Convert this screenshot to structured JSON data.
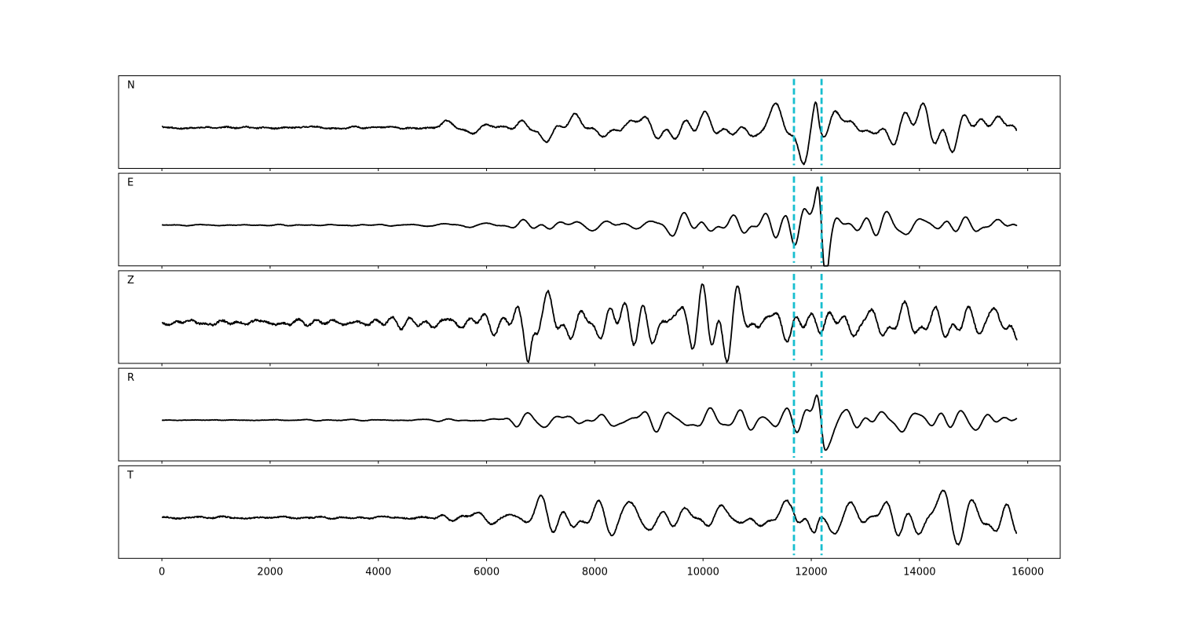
{
  "chart_data": {
    "type": "line",
    "panel_count": 5,
    "xlim": [
      -800,
      16600
    ],
    "x_ticks": [
      0,
      2000,
      4000,
      6000,
      8000,
      10000,
      12000,
      14000,
      16000
    ],
    "x_tick_labels": [
      "0",
      "2000",
      "4000",
      "6000",
      "8000",
      "10000",
      "12000",
      "14000",
      "16000"
    ],
    "x_range": [
      0,
      15800
    ],
    "y_ticks_shown": false,
    "grid": false,
    "trace_color": "#000000",
    "marker_color": "#17becf",
    "markers": [
      {
        "x": 11680,
        "style": "dashed"
      },
      {
        "x": 12190,
        "style": "dashed"
      }
    ],
    "series": [
      {
        "name": "N",
        "noise_amplitude": 0.03,
        "envelope": [
          [
            0,
            0.03
          ],
          [
            5000,
            0.04
          ],
          [
            5200,
            0.12
          ],
          [
            6300,
            0.1
          ],
          [
            6600,
            0.35
          ],
          [
            7000,
            0.55
          ],
          [
            8000,
            0.3
          ],
          [
            9000,
            0.35
          ],
          [
            11000,
            0.4
          ],
          [
            11600,
            0.45
          ],
          [
            11800,
            0.8
          ],
          [
            12000,
            0.95
          ],
          [
            12200,
            0.7
          ],
          [
            13000,
            0.5
          ],
          [
            15000,
            0.6
          ],
          [
            15300,
            0.8
          ],
          [
            15800,
            0.5
          ]
        ],
        "bursts": [
          [
            12100,
            0.85
          ]
        ],
        "seed": 11
      },
      {
        "name": "E",
        "noise_amplitude": 0.01,
        "envelope": [
          [
            0,
            0.01
          ],
          [
            4500,
            0.02
          ],
          [
            6300,
            0.08
          ],
          [
            6600,
            0.2
          ],
          [
            8000,
            0.2
          ],
          [
            10700,
            0.3
          ],
          [
            11500,
            0.3
          ],
          [
            11700,
            0.55
          ],
          [
            12000,
            0.95
          ],
          [
            12300,
            0.8
          ],
          [
            12600,
            0.3
          ],
          [
            13500,
            0.35
          ],
          [
            15800,
            0.2
          ]
        ],
        "bursts": [
          [
            12150,
            0.9
          ],
          [
            12250,
            0.85
          ]
        ],
        "seed": 23
      },
      {
        "name": "Z",
        "noise_amplitude": 0.05,
        "envelope": [
          [
            0,
            0.06
          ],
          [
            3700,
            0.08
          ],
          [
            4800,
            0.2
          ],
          [
            5500,
            0.22
          ],
          [
            6300,
            0.3
          ],
          [
            6700,
            0.8
          ],
          [
            7100,
            0.85
          ],
          [
            7500,
            0.55
          ],
          [
            9000,
            0.6
          ],
          [
            10000,
            0.8
          ],
          [
            11000,
            0.85
          ],
          [
            11500,
            0.6
          ],
          [
            12000,
            0.35
          ],
          [
            12500,
            0.45
          ],
          [
            13000,
            0.6
          ],
          [
            15800,
            0.5
          ]
        ],
        "bursts": [
          [
            6930,
            0.9
          ],
          [
            6790,
            0.7
          ]
        ],
        "seed": 37
      },
      {
        "name": "R",
        "noise_amplitude": 0.01,
        "envelope": [
          [
            0,
            0.01
          ],
          [
            4500,
            0.02
          ],
          [
            6300,
            0.08
          ],
          [
            6600,
            0.2
          ],
          [
            8000,
            0.2
          ],
          [
            10800,
            0.35
          ],
          [
            11500,
            0.3
          ],
          [
            11700,
            0.5
          ],
          [
            11900,
            0.9
          ],
          [
            12100,
            0.95
          ],
          [
            12300,
            0.85
          ],
          [
            12600,
            0.35
          ],
          [
            13800,
            0.35
          ],
          [
            15800,
            0.2
          ]
        ],
        "bursts": [
          [
            12100,
            0.9
          ],
          [
            12200,
            0.85
          ]
        ],
        "seed": 51
      },
      {
        "name": "T",
        "noise_amplitude": 0.03,
        "envelope": [
          [
            0,
            0.03
          ],
          [
            5000,
            0.04
          ],
          [
            5200,
            0.12
          ],
          [
            6300,
            0.1
          ],
          [
            6600,
            0.4
          ],
          [
            7000,
            0.5
          ],
          [
            8000,
            0.4
          ],
          [
            11000,
            0.45
          ],
          [
            11600,
            0.45
          ],
          [
            11800,
            0.85
          ],
          [
            12100,
            0.95
          ],
          [
            12300,
            0.55
          ],
          [
            13000,
            0.5
          ],
          [
            15000,
            0.55
          ],
          [
            15300,
            0.75
          ],
          [
            15800,
            0.4
          ]
        ],
        "bursts": [
          [
            12080,
            0.9
          ],
          [
            11950,
            0.8
          ]
        ],
        "seed": 67
      }
    ]
  }
}
